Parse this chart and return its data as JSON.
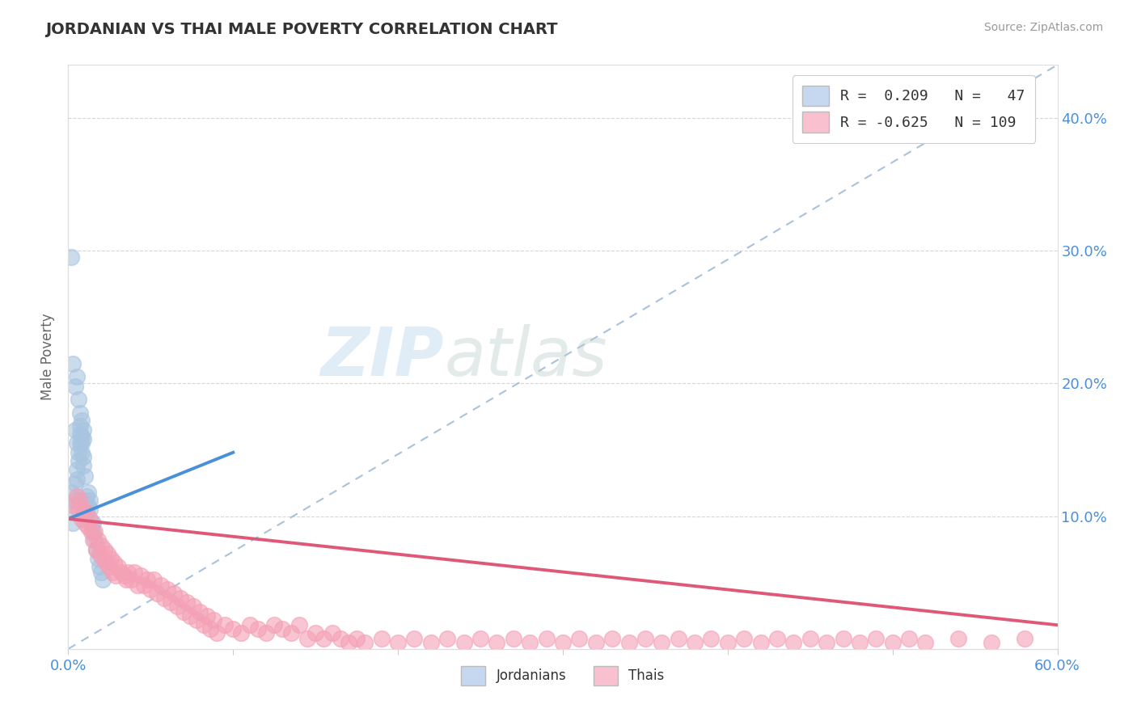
{
  "title": "JORDANIAN VS THAI MALE POVERTY CORRELATION CHART",
  "source": "Source: ZipAtlas.com",
  "ylabel": "Male Poverty",
  "xlim": [
    0.0,
    0.6
  ],
  "ylim": [
    0.0,
    0.44
  ],
  "xticks": [
    0.0,
    0.1,
    0.2,
    0.3,
    0.4,
    0.5,
    0.6
  ],
  "yticks": [
    0.1,
    0.2,
    0.3,
    0.4
  ],
  "jordan_color": "#a8c4e0",
  "thai_color": "#f4a0b5",
  "jordan_line_color": "#4a90d9",
  "thai_line_color": "#e05878",
  "grid_color": "#cccccc",
  "ref_line_color": "#a0bcd8",
  "jordanian_points": [
    [
      0.001,
      0.105
    ],
    [
      0.002,
      0.118
    ],
    [
      0.003,
      0.095
    ],
    [
      0.004,
      0.112
    ],
    [
      0.004,
      0.125
    ],
    [
      0.005,
      0.135
    ],
    [
      0.005,
      0.128
    ],
    [
      0.006,
      0.142
    ],
    [
      0.006,
      0.148
    ],
    [
      0.007,
      0.155
    ],
    [
      0.007,
      0.162
    ],
    [
      0.007,
      0.168
    ],
    [
      0.008,
      0.155
    ],
    [
      0.008,
      0.16
    ],
    [
      0.008,
      0.172
    ],
    [
      0.009,
      0.158
    ],
    [
      0.009,
      0.165
    ],
    [
      0.009,
      0.145
    ],
    [
      0.01,
      0.105
    ],
    [
      0.01,
      0.112
    ],
    [
      0.01,
      0.108
    ],
    [
      0.011,
      0.102
    ],
    [
      0.011,
      0.115
    ],
    [
      0.012,
      0.118
    ],
    [
      0.012,
      0.108
    ],
    [
      0.013,
      0.105
    ],
    [
      0.013,
      0.112
    ],
    [
      0.014,
      0.095
    ],
    [
      0.015,
      0.088
    ],
    [
      0.015,
      0.095
    ],
    [
      0.016,
      0.082
    ],
    [
      0.017,
      0.075
    ],
    [
      0.018,
      0.068
    ],
    [
      0.019,
      0.062
    ],
    [
      0.02,
      0.058
    ],
    [
      0.021,
      0.052
    ],
    [
      0.002,
      0.295
    ],
    [
      0.003,
      0.215
    ],
    [
      0.004,
      0.198
    ],
    [
      0.005,
      0.205
    ],
    [
      0.006,
      0.188
    ],
    [
      0.007,
      0.178
    ],
    [
      0.008,
      0.148
    ],
    [
      0.009,
      0.138
    ],
    [
      0.01,
      0.13
    ],
    [
      0.004,
      0.165
    ],
    [
      0.005,
      0.155
    ]
  ],
  "thai_points": [
    [
      0.003,
      0.108
    ],
    [
      0.005,
      0.115
    ],
    [
      0.006,
      0.105
    ],
    [
      0.007,
      0.112
    ],
    [
      0.008,
      0.098
    ],
    [
      0.009,
      0.105
    ],
    [
      0.01,
      0.095
    ],
    [
      0.011,
      0.102
    ],
    [
      0.012,
      0.092
    ],
    [
      0.013,
      0.098
    ],
    [
      0.014,
      0.088
    ],
    [
      0.015,
      0.082
    ],
    [
      0.016,
      0.088
    ],
    [
      0.017,
      0.075
    ],
    [
      0.018,
      0.082
    ],
    [
      0.019,
      0.072
    ],
    [
      0.02,
      0.078
    ],
    [
      0.021,
      0.068
    ],
    [
      0.022,
      0.075
    ],
    [
      0.023,
      0.065
    ],
    [
      0.024,
      0.072
    ],
    [
      0.025,
      0.062
    ],
    [
      0.026,
      0.068
    ],
    [
      0.027,
      0.058
    ],
    [
      0.028,
      0.065
    ],
    [
      0.029,
      0.055
    ],
    [
      0.03,
      0.062
    ],
    [
      0.032,
      0.058
    ],
    [
      0.034,
      0.055
    ],
    [
      0.035,
      0.052
    ],
    [
      0.036,
      0.058
    ],
    [
      0.038,
      0.052
    ],
    [
      0.04,
      0.058
    ],
    [
      0.042,
      0.048
    ],
    [
      0.044,
      0.055
    ],
    [
      0.046,
      0.048
    ],
    [
      0.048,
      0.052
    ],
    [
      0.05,
      0.045
    ],
    [
      0.052,
      0.052
    ],
    [
      0.054,
      0.042
    ],
    [
      0.056,
      0.048
    ],
    [
      0.058,
      0.038
    ],
    [
      0.06,
      0.045
    ],
    [
      0.062,
      0.035
    ],
    [
      0.064,
      0.042
    ],
    [
      0.066,
      0.032
    ],
    [
      0.068,
      0.038
    ],
    [
      0.07,
      0.028
    ],
    [
      0.072,
      0.035
    ],
    [
      0.074,
      0.025
    ],
    [
      0.076,
      0.032
    ],
    [
      0.078,
      0.022
    ],
    [
      0.08,
      0.028
    ],
    [
      0.082,
      0.018
    ],
    [
      0.084,
      0.025
    ],
    [
      0.086,
      0.015
    ],
    [
      0.088,
      0.022
    ],
    [
      0.09,
      0.012
    ],
    [
      0.095,
      0.018
    ],
    [
      0.1,
      0.015
    ],
    [
      0.105,
      0.012
    ],
    [
      0.11,
      0.018
    ],
    [
      0.115,
      0.015
    ],
    [
      0.12,
      0.012
    ],
    [
      0.125,
      0.018
    ],
    [
      0.13,
      0.015
    ],
    [
      0.135,
      0.012
    ],
    [
      0.14,
      0.018
    ],
    [
      0.145,
      0.008
    ],
    [
      0.15,
      0.012
    ],
    [
      0.155,
      0.008
    ],
    [
      0.16,
      0.012
    ],
    [
      0.165,
      0.008
    ],
    [
      0.17,
      0.005
    ],
    [
      0.175,
      0.008
    ],
    [
      0.18,
      0.005
    ],
    [
      0.19,
      0.008
    ],
    [
      0.2,
      0.005
    ],
    [
      0.21,
      0.008
    ],
    [
      0.22,
      0.005
    ],
    [
      0.23,
      0.008
    ],
    [
      0.24,
      0.005
    ],
    [
      0.25,
      0.008
    ],
    [
      0.26,
      0.005
    ],
    [
      0.27,
      0.008
    ],
    [
      0.28,
      0.005
    ],
    [
      0.29,
      0.008
    ],
    [
      0.3,
      0.005
    ],
    [
      0.31,
      0.008
    ],
    [
      0.32,
      0.005
    ],
    [
      0.33,
      0.008
    ],
    [
      0.34,
      0.005
    ],
    [
      0.35,
      0.008
    ],
    [
      0.36,
      0.005
    ],
    [
      0.37,
      0.008
    ],
    [
      0.38,
      0.005
    ],
    [
      0.39,
      0.008
    ],
    [
      0.4,
      0.005
    ],
    [
      0.41,
      0.008
    ],
    [
      0.42,
      0.005
    ],
    [
      0.43,
      0.008
    ],
    [
      0.44,
      0.005
    ],
    [
      0.45,
      0.008
    ],
    [
      0.46,
      0.005
    ],
    [
      0.47,
      0.008
    ],
    [
      0.48,
      0.005
    ],
    [
      0.49,
      0.008
    ],
    [
      0.5,
      0.005
    ],
    [
      0.51,
      0.008
    ],
    [
      0.52,
      0.005
    ],
    [
      0.54,
      0.008
    ],
    [
      0.56,
      0.005
    ],
    [
      0.58,
      0.008
    ]
  ],
  "jordan_line": [
    [
      0.0,
      0.098
    ],
    [
      0.1,
      0.148
    ]
  ],
  "thai_line": [
    [
      0.0,
      0.098
    ],
    [
      0.6,
      0.018
    ]
  ]
}
